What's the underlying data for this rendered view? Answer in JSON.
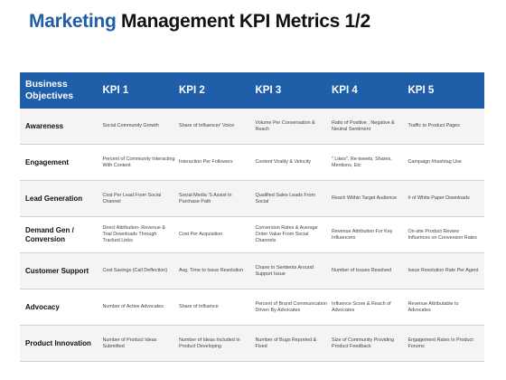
{
  "title": {
    "accent": "Marketing",
    "rest": " Management KPI Metrics 1/2"
  },
  "header": {
    "objectives": "Business Objectives",
    "kpis": [
      "KPI 1",
      "KPI 2",
      "KPI 3",
      "KPI 4",
      "KPI 5"
    ]
  },
  "rows": [
    {
      "label": "Awareness",
      "cells": [
        "Social Community Growth",
        "Share of Influencer' Voice",
        "Volume Per Conversation & Reach",
        "Ratio of Positive , Negative & Neutral Sentiment",
        "Traffic to Product Pages"
      ]
    },
    {
      "label": "Engagement",
      "cells": [
        "Percent of Community Interacting With Content",
        "Interaction Per Followers",
        "Content Virality & Velocity",
        "\" Likes\", Re-tweets, Shares, Mentions, Etc",
        "Campaign #hashtag Use"
      ]
    },
    {
      "label": "Lead Generation",
      "cells": [
        "Cost Per Lead From Social Channel",
        "Social Media 'S Assist In Purchase Path",
        "Qualified Sales Leads From Social",
        "Reach Within Target Audience",
        "# of White Paper Downloads"
      ]
    },
    {
      "label": "Demand Gen / Conversion",
      "cells": [
        "Direct Attribution- Revenue & Trial Downloads Through Tracked Links",
        "Cost Per Acquisition",
        "Conversion Rates & Average Order Value From Social Channels",
        "Revenue Attribution For Key Influencers",
        "On-site Product Review Influences on Conversion Rates"
      ]
    },
    {
      "label": "Customer Support",
      "cells": [
        "Cost Savings (Call Deflection)",
        "Avg. Time to Issue Resolution",
        "Chane In Sentients Around Support Issue",
        "Number of Issues Resolved",
        "Issue Resolution Rate Per Agent"
      ]
    },
    {
      "label": "Advocacy",
      "cells": [
        "Number of Active Advocates",
        "Share of Influence",
        "Percent of Brand Communication Driven By Advocates",
        "Influence Score & Reach of Advocates",
        "Revenue Attributable to Advocates"
      ]
    },
    {
      "label": "Product Innovation",
      "cells": [
        "Number of Product Ideas Submitted",
        "Number of Ideas Included In Product Developing",
        "Number of Bugs Reported & Fixed",
        "Size of Community Providing Product Feedback",
        "Engagement Rates In Product Forums"
      ]
    }
  ],
  "colors": {
    "accent": "#1f5ea8",
    "header_text": "#ffffff"
  }
}
